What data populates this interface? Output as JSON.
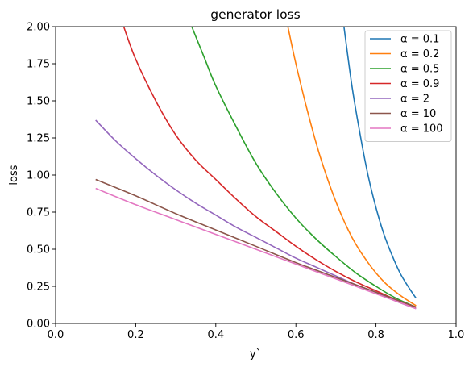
{
  "chart_data": {
    "type": "line",
    "title": "generator loss",
    "xlabel": "y`",
    "ylabel": "loss",
    "xlim": [
      0.0,
      1.0
    ],
    "ylim": [
      0.0,
      2.0
    ],
    "xticks": [
      "0.0",
      "0.2",
      "0.4",
      "0.6",
      "0.8",
      "1.0"
    ],
    "yticks": [
      "0.00",
      "0.25",
      "0.50",
      "0.75",
      "1.00",
      "1.25",
      "1.50",
      "1.75",
      "2.00"
    ],
    "grid": false,
    "legend_position": "top-right",
    "x": [
      0.1,
      0.15,
      0.2,
      0.25,
      0.3,
      0.35,
      0.4,
      0.45,
      0.5,
      0.55,
      0.6,
      0.65,
      0.7,
      0.75,
      0.8,
      0.85,
      0.9
    ],
    "series": [
      {
        "name": "α = 0.1",
        "color": "#1f77b4",
        "x": [
          0.72,
          0.74,
          0.76,
          0.78,
          0.8,
          0.82,
          0.84,
          0.86,
          0.88,
          0.9
        ],
        "values": [
          2.0,
          1.6,
          1.28,
          1.0,
          0.78,
          0.6,
          0.46,
          0.34,
          0.25,
          0.17
        ]
      },
      {
        "name": "α = 0.2",
        "color": "#ff7f0e",
        "x": [
          0.58,
          0.6,
          0.63,
          0.66,
          0.7,
          0.74,
          0.78,
          0.82,
          0.86,
          0.9
        ],
        "values": [
          2.0,
          1.75,
          1.42,
          1.13,
          0.82,
          0.58,
          0.41,
          0.28,
          0.19,
          0.12
        ]
      },
      {
        "name": "α = 0.5",
        "color": "#2ca02c",
        "x": [
          0.34,
          0.37,
          0.4,
          0.45,
          0.5,
          0.55,
          0.6,
          0.65,
          0.7,
          0.75,
          0.8,
          0.85,
          0.9
        ],
        "values": [
          2.0,
          1.8,
          1.6,
          1.33,
          1.08,
          0.88,
          0.71,
          0.57,
          0.45,
          0.34,
          0.25,
          0.17,
          0.11
        ]
      },
      {
        "name": "α = 0.9",
        "color": "#d62728",
        "x": [
          0.17,
          0.2,
          0.25,
          0.3,
          0.35,
          0.4,
          0.45,
          0.5,
          0.55,
          0.6,
          0.65,
          0.7,
          0.75,
          0.8,
          0.85,
          0.9
        ],
        "values": [
          2.0,
          1.78,
          1.5,
          1.27,
          1.1,
          0.97,
          0.84,
          0.72,
          0.62,
          0.52,
          0.43,
          0.35,
          0.28,
          0.22,
          0.16,
          0.11
        ]
      },
      {
        "name": "α = 2",
        "color": "#9467bd",
        "x": [
          0.1,
          0.15,
          0.2,
          0.25,
          0.3,
          0.35,
          0.4,
          0.45,
          0.5,
          0.55,
          0.6,
          0.65,
          0.7,
          0.75,
          0.8,
          0.85,
          0.9
        ],
        "values": [
          1.37,
          1.23,
          1.11,
          1.0,
          0.9,
          0.81,
          0.73,
          0.65,
          0.58,
          0.51,
          0.44,
          0.38,
          0.32,
          0.26,
          0.21,
          0.15,
          0.1
        ]
      },
      {
        "name": "α = 10",
        "color": "#8c564b",
        "x": [
          0.1,
          0.2,
          0.3,
          0.4,
          0.5,
          0.6,
          0.7,
          0.8,
          0.9
        ],
        "values": [
          0.97,
          0.86,
          0.74,
          0.63,
          0.52,
          0.41,
          0.31,
          0.21,
          0.11
        ]
      },
      {
        "name": "α = 100",
        "color": "#e377c2",
        "x": [
          0.1,
          0.2,
          0.3,
          0.4,
          0.5,
          0.6,
          0.7,
          0.8,
          0.9
        ],
        "values": [
          0.91,
          0.8,
          0.7,
          0.6,
          0.5,
          0.4,
          0.3,
          0.2,
          0.1
        ]
      }
    ]
  }
}
